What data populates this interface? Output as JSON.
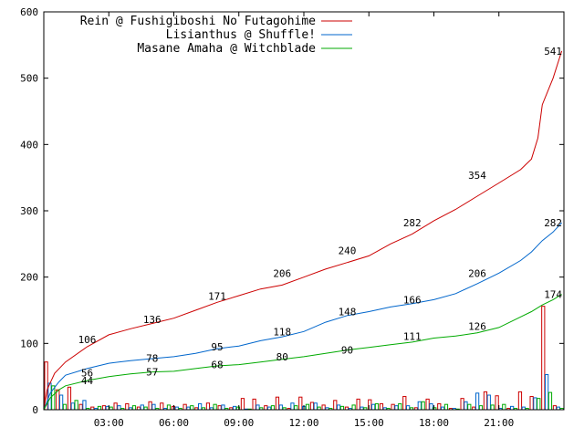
{
  "chart_data": {
    "type": "line",
    "title": "",
    "xlabel": "",
    "ylabel": "",
    "grid": false,
    "legend_position": "top-left",
    "xlim": [
      0,
      24
    ],
    "ylim": [
      0,
      600
    ],
    "yticks": [
      0,
      100,
      200,
      300,
      400,
      500,
      600
    ],
    "xticks": [
      {
        "x": 3,
        "label": "03:00"
      },
      {
        "x": 6,
        "label": "06:00"
      },
      {
        "x": 9,
        "label": "09:00"
      },
      {
        "x": 12,
        "label": "12:00"
      },
      {
        "x": 15,
        "label": "15:00"
      },
      {
        "x": 18,
        "label": "18:00"
      },
      {
        "x": 21,
        "label": "21:00"
      }
    ],
    "series": [
      {
        "name": "Rein @ Fushigiboshi No Futagohime",
        "color": "#cc0000",
        "points": [
          [
            0,
            0
          ],
          [
            0.15,
            30
          ],
          [
            0.5,
            55
          ],
          [
            1,
            72
          ],
          [
            2,
            95
          ],
          [
            3,
            113
          ],
          [
            4,
            122
          ],
          [
            5,
            130
          ],
          [
            6,
            138
          ],
          [
            7,
            150
          ],
          [
            8,
            162
          ],
          [
            9,
            172
          ],
          [
            10,
            182
          ],
          [
            11,
            188
          ],
          [
            12,
            200
          ],
          [
            13,
            212
          ],
          [
            14,
            222
          ],
          [
            15,
            232
          ],
          [
            16,
            250
          ],
          [
            17,
            265
          ],
          [
            18,
            285
          ],
          [
            19,
            302
          ],
          [
            20,
            322
          ],
          [
            21,
            342
          ],
          [
            22,
            362
          ],
          [
            22.5,
            378
          ],
          [
            22.8,
            410
          ],
          [
            23,
            460
          ],
          [
            23.5,
            500
          ],
          [
            23.9,
            541
          ]
        ],
        "labels": [
          [
            2,
            106
          ],
          [
            5,
            136
          ],
          [
            8,
            171
          ],
          [
            11,
            206
          ],
          [
            14,
            240
          ],
          [
            17,
            282
          ],
          [
            20,
            354
          ],
          [
            23.5,
            541
          ]
        ],
        "bars": [
          72,
          30,
          34,
          8,
          4,
          6,
          10,
          9,
          4,
          12,
          10,
          5,
          8,
          3,
          10,
          6,
          3,
          17,
          16,
          6,
          19,
          2,
          19,
          11,
          7,
          14,
          4,
          16,
          15,
          9,
          8,
          20,
          3,
          16,
          9,
          2,
          17,
          4,
          27,
          21,
          2,
          27,
          20,
          156,
          6
        ]
      },
      {
        "name": "Lisianthus @ Shuffle!",
        "color": "#0066cc",
        "points": [
          [
            0,
            0
          ],
          [
            0.3,
            25
          ],
          [
            0.7,
            42
          ],
          [
            1,
            52
          ],
          [
            2,
            62
          ],
          [
            3,
            70
          ],
          [
            4,
            74
          ],
          [
            5,
            77
          ],
          [
            6,
            80
          ],
          [
            7,
            85
          ],
          [
            8,
            92
          ],
          [
            9,
            96
          ],
          [
            10,
            104
          ],
          [
            11,
            110
          ],
          [
            12,
            118
          ],
          [
            13,
            132
          ],
          [
            14,
            142
          ],
          [
            15,
            148
          ],
          [
            16,
            155
          ],
          [
            17,
            160
          ],
          [
            18,
            166
          ],
          [
            19,
            175
          ],
          [
            20,
            190
          ],
          [
            21,
            206
          ],
          [
            22,
            225
          ],
          [
            22.5,
            238
          ],
          [
            23,
            255
          ],
          [
            23.5,
            268
          ],
          [
            23.9,
            282
          ]
        ],
        "labels": [
          [
            2,
            56
          ],
          [
            5,
            78
          ],
          [
            8,
            95
          ],
          [
            11,
            118
          ],
          [
            14,
            148
          ],
          [
            17,
            166
          ],
          [
            20,
            206
          ],
          [
            23.5,
            282
          ]
        ],
        "bars": [
          40,
          22,
          10,
          14,
          2,
          5,
          6,
          3,
          7,
          8,
          2,
          4,
          4,
          9,
          3,
          7,
          5,
          1,
          7,
          4,
          7,
          10,
          5,
          10,
          3,
          7,
          2,
          4,
          8,
          3,
          6,
          6,
          12,
          9,
          4,
          2,
          12,
          25,
          22,
          2,
          5,
          4,
          18,
          53,
          4
        ]
      },
      {
        "name": "Masane Amaha @ Witchblade",
        "color": "#00aa00",
        "points": [
          [
            0,
            0
          ],
          [
            0.3,
            18
          ],
          [
            0.7,
            30
          ],
          [
            1,
            36
          ],
          [
            2,
            44
          ],
          [
            3,
            50
          ],
          [
            4,
            54
          ],
          [
            5,
            57
          ],
          [
            6,
            58
          ],
          [
            7,
            62
          ],
          [
            8,
            66
          ],
          [
            9,
            68
          ],
          [
            10,
            72
          ],
          [
            11,
            76
          ],
          [
            12,
            80
          ],
          [
            13,
            85
          ],
          [
            14,
            90
          ],
          [
            15,
            94
          ],
          [
            16,
            98
          ],
          [
            17,
            102
          ],
          [
            18,
            108
          ],
          [
            19,
            111
          ],
          [
            20,
            116
          ],
          [
            21,
            124
          ],
          [
            22,
            140
          ],
          [
            22.5,
            148
          ],
          [
            23,
            158
          ],
          [
            23.5,
            166
          ],
          [
            23.9,
            174
          ]
        ],
        "labels": [
          [
            2,
            44
          ],
          [
            5,
            57
          ],
          [
            8,
            68
          ],
          [
            11,
            80
          ],
          [
            14,
            90
          ],
          [
            17,
            111
          ],
          [
            20,
            126
          ],
          [
            23.5,
            174
          ]
        ],
        "bars": [
          36,
          8,
          14,
          2,
          5,
          4,
          2,
          6,
          4,
          2,
          7,
          2,
          6,
          3,
          8,
          2,
          4,
          1,
          3,
          6,
          3,
          6,
          8,
          4,
          2,
          5,
          7,
          3,
          9,
          2,
          9,
          3,
          12,
          3,
          8,
          1,
          8,
          6,
          7,
          8,
          2,
          2,
          17,
          26,
          2
        ]
      }
    ]
  }
}
